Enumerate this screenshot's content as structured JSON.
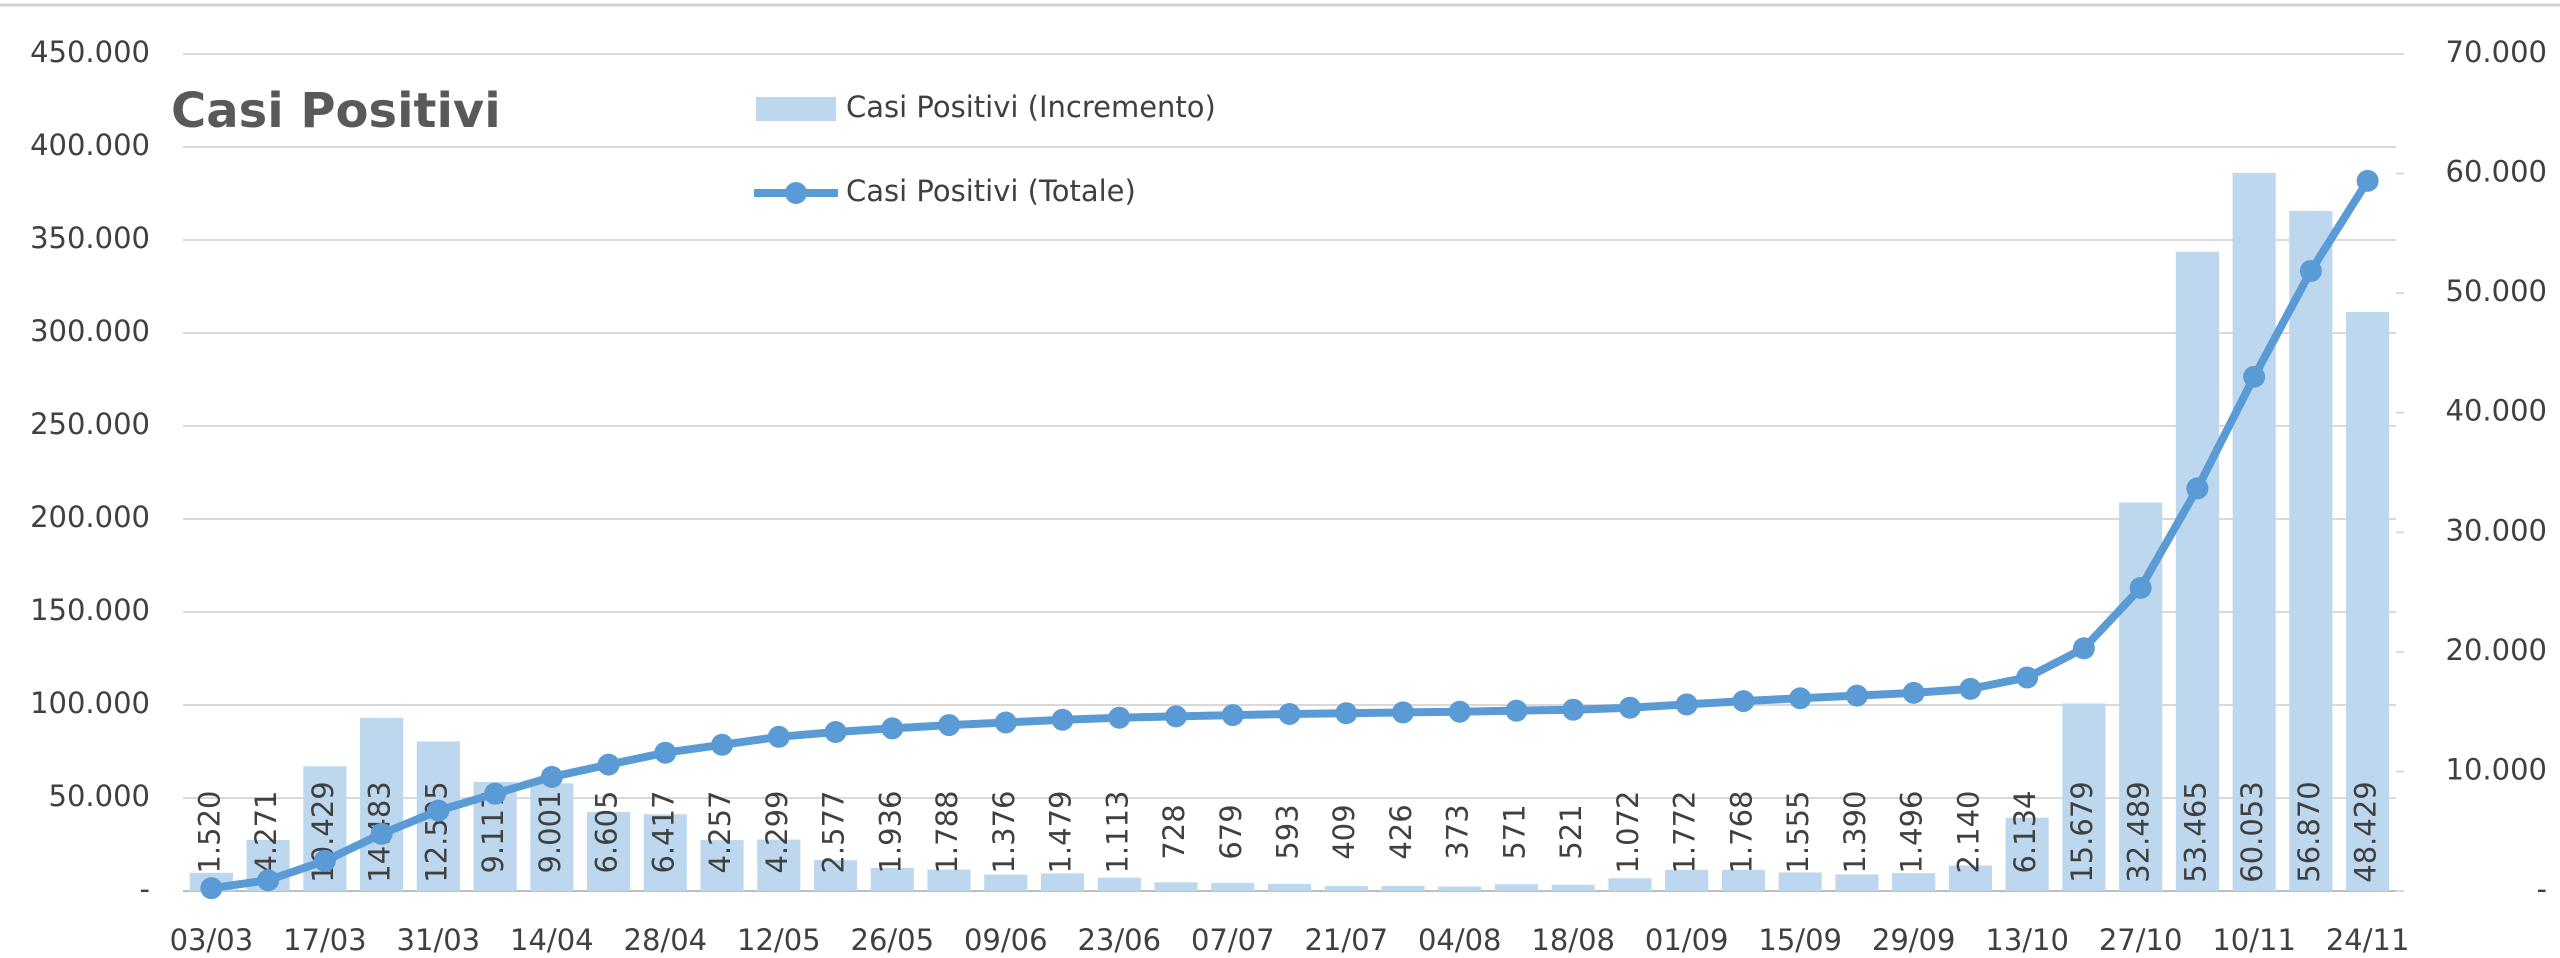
{
  "chart_data": {
    "type": "bar_line",
    "title": "Casi Positivi",
    "categories": [
      "03/03",
      null,
      "17/03",
      null,
      "31/03",
      null,
      "14/04",
      null,
      "28/04",
      null,
      "12/05",
      null,
      "26/05",
      null,
      "09/06",
      null,
      "23/06",
      null,
      "07/07",
      null,
      "21/07",
      null,
      "04/08",
      null,
      "18/08",
      null,
      "01/09",
      null,
      "15/09",
      null,
      "29/09",
      null,
      "13/10",
      null,
      "27/10",
      null,
      "10/11",
      null,
      "24/11"
    ],
    "series": [
      {
        "name": "Casi Positivi (Incremento)",
        "type": "bar",
        "axis": "y2",
        "color": "#bdd7ee",
        "values": [
          1520,
          4271,
          10429,
          14483,
          12505,
          9117,
          9001,
          6605,
          6417,
          4257,
          4299,
          2577,
          1936,
          1788,
          1376,
          1479,
          1113,
          728,
          679,
          593,
          409,
          426,
          373,
          571,
          521,
          1072,
          1772,
          1768,
          1555,
          1390,
          1496,
          2140,
          6134,
          15679,
          32489,
          53465,
          60053,
          56870,
          48429
        ],
        "value_labels": [
          "1.520",
          "4.271",
          "10.429",
          "14.483",
          "12.505",
          "9.117",
          "9.001",
          "6.605",
          "6.417",
          "4.257",
          "4.299",
          "2.577",
          "1.936",
          "1.788",
          "1.376",
          "1.479",
          "1.113",
          "728",
          "679",
          "593",
          "409",
          "426",
          "373",
          "571",
          "521",
          "1.072",
          "1.772",
          "1.768",
          "1.555",
          "1.390",
          "1.496",
          "2.140",
          "6.134",
          "15.679",
          "32.489",
          "53.465",
          "60.053",
          "56.870",
          "48.429"
        ]
      },
      {
        "name": "Casi Positivi (Totale)",
        "type": "line",
        "axis": "y",
        "color": "#5b9bd5",
        "values": [
          1520,
          5791,
          16220,
          30703,
          43208,
          52325,
          61326,
          67931,
          74348,
          78605,
          82904,
          85481,
          87417,
          89205,
          90581,
          92060,
          93173,
          93901,
          94580,
          95173,
          95582,
          96008,
          96381,
          96952,
          97473,
          98545,
          100317,
          102085,
          103640,
          105030,
          106526,
          108666,
          114800,
          130479,
          162968,
          216433,
          276486,
          333356,
          381785
        ]
      }
    ],
    "ylim": [
      0,
      450000
    ],
    "yticks": [
      {
        "value": 0,
        "label": "-"
      },
      {
        "value": 50000,
        "label": "50.000"
      },
      {
        "value": 100000,
        "label": "100.000"
      },
      {
        "value": 150000,
        "label": "150.000"
      },
      {
        "value": 200000,
        "label": "200.000"
      },
      {
        "value": 250000,
        "label": "250.000"
      },
      {
        "value": 300000,
        "label": "300.000"
      },
      {
        "value": 350000,
        "label": "350.000"
      },
      {
        "value": 400000,
        "label": "400.000"
      },
      {
        "value": 450000,
        "label": "450.000"
      }
    ],
    "y2lim": [
      0,
      70000
    ],
    "y2ticks": [
      {
        "value": 0,
        "label": "-"
      },
      {
        "value": 10000,
        "label": "10.000"
      },
      {
        "value": 20000,
        "label": "20.000"
      },
      {
        "value": 30000,
        "label": "30.000"
      },
      {
        "value": 40000,
        "label": "40.000"
      },
      {
        "value": 50000,
        "label": "50.000"
      },
      {
        "value": 60000,
        "label": "60.000"
      },
      {
        "value": 70000,
        "label": "70.000"
      }
    ],
    "grid": true
  }
}
